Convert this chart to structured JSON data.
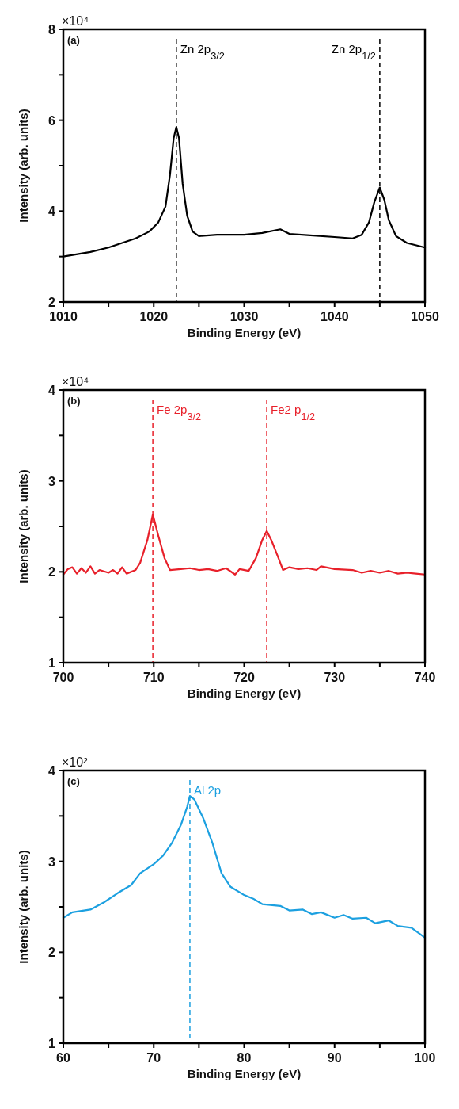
{
  "chart_data": [
    {
      "type": "line",
      "xlabel": "Binding Energy (eV)",
      "ylabel": "Intensity (arb. units)",
      "annotations": [
        "(a)",
        "×10⁴"
      ],
      "series": [
        {
          "color": "#000000",
          "x": [
            1010,
            1013,
            1015,
            1018,
            1019.5,
            1020.5,
            1021.3,
            1021.8,
            1022.2,
            1022.5,
            1022.8,
            1023.2,
            1023.7,
            1024.3,
            1025,
            1027,
            1030,
            1032,
            1034,
            1035,
            1037,
            1040,
            1042,
            1043,
            1043.8,
            1044.4,
            1045,
            1045.5,
            1046,
            1046.8,
            1048,
            1050
          ],
          "values": [
            3.0,
            3.1,
            3.2,
            3.4,
            3.55,
            3.75,
            4.1,
            4.8,
            5.6,
            5.85,
            5.6,
            4.6,
            3.9,
            3.55,
            3.45,
            3.48,
            3.48,
            3.52,
            3.6,
            3.5,
            3.47,
            3.43,
            3.4,
            3.48,
            3.75,
            4.2,
            4.52,
            4.25,
            3.8,
            3.45,
            3.3,
            3.2
          ]
        }
      ],
      "xlim": [
        1010,
        1050
      ],
      "xticks": [
        1010,
        {
          "value": 1015,
          "label": null
        },
        1020,
        {
          "value": 1025,
          "label": null
        },
        1030,
        {
          "value": 1035,
          "label": null
        },
        1040,
        {
          "value": 1045,
          "label": null
        },
        1050
      ],
      "ylim": [
        2,
        8
      ],
      "yticks": [
        2,
        {
          "value": 3,
          "label": null
        },
        4,
        {
          "value": 5,
          "label": null
        },
        6,
        {
          "value": 7,
          "label": null
        },
        8
      ],
      "ref_lines": [
        {
          "axis": "x",
          "value": 1022.5,
          "label": "Zn 2p$_{3/2}$",
          "color": "#000000",
          "line_style": "dashed"
        },
        {
          "axis": "x",
          "value": 1045,
          "label": "Zn 2p$_{1/2}$",
          "color": "#000000",
          "line_style": "dashed"
        }
      ],
      "line_style": "solid",
      "marker": "none",
      "grid": false
    },
    {
      "type": "line",
      "xlabel": "Binding Energy (eV)",
      "ylabel": "Intensity (arb. units)",
      "annotations": [
        "(b)",
        "×10⁴"
      ],
      "series": [
        {
          "color": "#e8202a",
          "x": [
            700,
            700.5,
            701,
            701.5,
            702,
            702.5,
            703,
            703.5,
            704,
            705,
            705.5,
            706,
            706.5,
            707,
            708,
            708.5,
            709.3,
            709.9,
            710.5,
            711.2,
            711.8,
            713,
            714,
            715,
            716,
            717,
            718,
            719,
            719.5,
            720.5,
            721.3,
            722,
            722.5,
            723,
            723.8,
            724.3,
            725,
            726,
            727,
            728,
            728.5,
            730,
            732,
            733,
            734,
            735,
            736,
            737,
            738,
            739,
            740
          ],
          "values": [
            1.97,
            2.03,
            2.05,
            1.98,
            2.04,
            1.99,
            2.06,
            1.98,
            2.02,
            1.99,
            2.02,
            1.98,
            2.05,
            1.98,
            2.02,
            2.1,
            2.35,
            2.63,
            2.4,
            2.15,
            2.02,
            2.03,
            2.04,
            2.02,
            2.03,
            2.01,
            2.04,
            1.97,
            2.03,
            2.01,
            2.15,
            2.35,
            2.45,
            2.35,
            2.15,
            2.02,
            2.05,
            2.03,
            2.04,
            2.02,
            2.06,
            2.03,
            2.02,
            1.99,
            2.01,
            1.99,
            2.01,
            1.98,
            1.99,
            1.98,
            1.97
          ]
        }
      ],
      "xlim": [
        700,
        740
      ],
      "xticks": [
        700,
        {
          "value": 705,
          "label": null
        },
        710,
        {
          "value": 715,
          "label": null
        },
        720,
        {
          "value": 725,
          "label": null
        },
        730,
        {
          "value": 735,
          "label": null
        },
        740
      ],
      "ylim": [
        1,
        4
      ],
      "yticks": [
        1,
        {
          "value": 1.5,
          "label": null
        },
        2,
        {
          "value": 2.5,
          "label": null
        },
        3,
        {
          "value": 3.5,
          "label": null
        },
        4
      ],
      "ref_lines": [
        {
          "axis": "x",
          "value": 709.9,
          "label": "Fe 2p$_{3/2}$",
          "color": "#e8202a",
          "line_style": "dashed"
        },
        {
          "axis": "x",
          "value": 722.5,
          "label": "Fe2 p$_{1/2}$",
          "color": "#e8202a",
          "line_style": "dashed"
        }
      ],
      "line_style": "solid",
      "marker": "none",
      "grid": false
    },
    {
      "type": "line",
      "xlabel": "Binding Energy (eV)",
      "ylabel": "Intensity (arb. units)",
      "annotations": [
        "(c)",
        "×10²"
      ],
      "series": [
        {
          "color": "#1ca0e0",
          "x": [
            60,
            61,
            63,
            64.5,
            66,
            67.5,
            68.5,
            70,
            71,
            72,
            73,
            73.7,
            74,
            74.5,
            75.5,
            76.5,
            77.5,
            78.5,
            80,
            81,
            82,
            84,
            85,
            86.5,
            87.5,
            88.5,
            90,
            91,
            92,
            93.5,
            94.5,
            96,
            97,
            98.5,
            100
          ],
          "values": [
            2.38,
            2.44,
            2.47,
            2.55,
            2.65,
            2.74,
            2.87,
            2.97,
            3.06,
            3.2,
            3.4,
            3.6,
            3.72,
            3.68,
            3.47,
            3.2,
            2.87,
            2.72,
            2.63,
            2.59,
            2.53,
            2.51,
            2.46,
            2.47,
            2.42,
            2.44,
            2.38,
            2.41,
            2.37,
            2.38,
            2.32,
            2.35,
            2.29,
            2.27,
            2.16
          ]
        }
      ],
      "xlim": [
        60,
        100
      ],
      "xticks": [
        60,
        {
          "value": 65,
          "label": null
        },
        70,
        {
          "value": 75,
          "label": null
        },
        80,
        {
          "value": 85,
          "label": null
        },
        90,
        {
          "value": 95,
          "label": null
        },
        100
      ],
      "ylim": [
        1,
        4
      ],
      "yticks": [
        1,
        {
          "value": 1.5,
          "label": null
        },
        2,
        {
          "value": 2.5,
          "label": null
        },
        3,
        {
          "value": 3.5,
          "label": null
        },
        4
      ],
      "ref_lines": [
        {
          "axis": "x",
          "value": 74,
          "label": "Al 2p",
          "color": "#1ca0e0",
          "line_style": "dashed"
        }
      ],
      "line_style": "solid",
      "marker": "none",
      "grid": false
    }
  ]
}
